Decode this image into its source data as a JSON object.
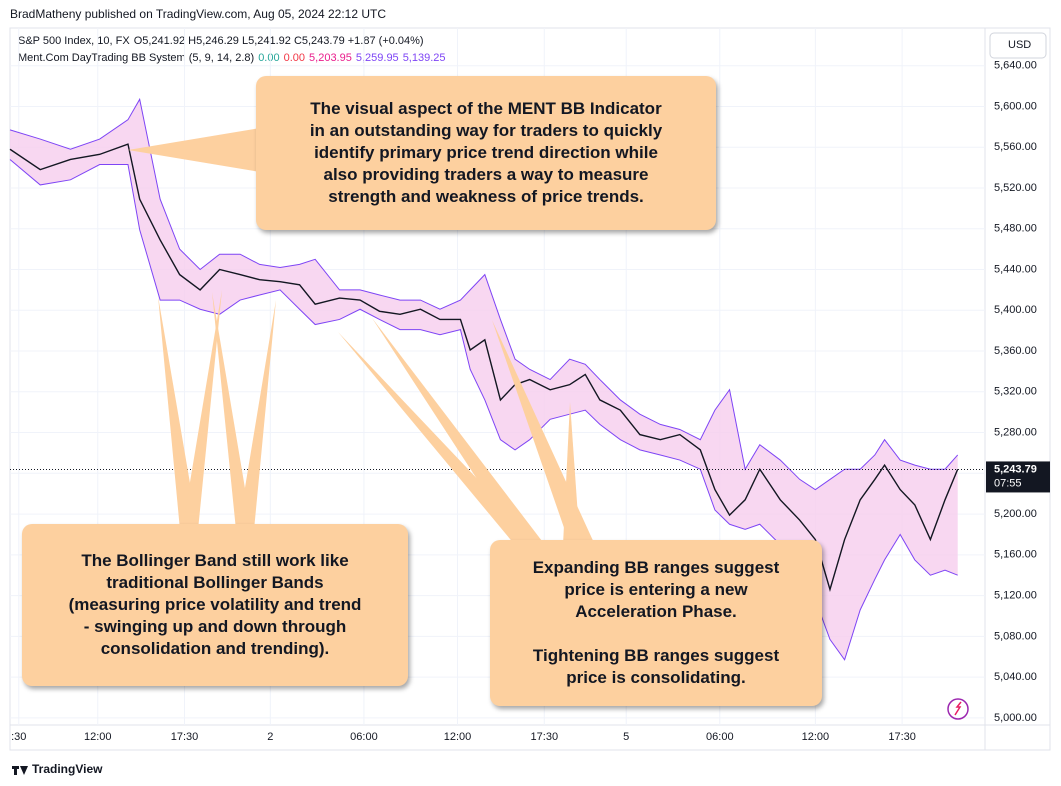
{
  "header": {
    "published": "BradMatheny published on TradingView.com, Aug 05, 2024 22:12 UTC",
    "symbol": "S&P 500 Index, 10, FX",
    "ohlc": "O5,241.92 H5,246.29 L5,241.92 C5,243.79 +1.87 (+0.04%)",
    "indicator": "Ment.Com DayTrading BB System (5, 9, 14, 2.8)",
    "indicator_values": [
      {
        "label": "0.00",
        "color": "#26a69a"
      },
      {
        "label": "0.00",
        "color": "#f23645"
      },
      {
        "label": "5,203.95",
        "color": "#e91e8c"
      },
      {
        "label": "5,259.95",
        "color": "#7e45f5"
      },
      {
        "label": "5,139.25",
        "color": "#7e45f5"
      }
    ],
    "currency": "USD",
    "countdown": "07:55",
    "footer": "TradingView"
  },
  "chart_data": {
    "type": "line",
    "x": [
      0,
      3.1,
      6.2,
      9.2,
      12.1,
      13.3,
      15.4,
      17.4,
      19.5,
      21.5,
      23.6,
      25.6,
      27.7,
      29.7,
      31.3,
      33.8,
      35.9,
      37.9,
      40,
      42.1,
      44.1,
      46.2,
      47.2,
      48.7,
      50.3,
      51.8,
      53.3,
      55.4,
      57.4,
      59,
      60.5,
      62.6,
      64.6,
      66.7,
      68.7,
      70.8,
      72.3,
      73.8,
      75.4,
      76.9,
      79,
      81,
      82.6,
      84.1,
      85.6,
      87.2,
      88.7,
      89.7,
      91.3,
      92.8,
      94.4,
      95.9,
      97.2
    ],
    "series": [
      {
        "color": "#131722",
        "values": [
          5558,
          5538,
          5548,
          5553,
          5563,
          5509,
          5469,
          5435,
          5420,
          5440,
          5435,
          5430,
          5428,
          5425,
          5406,
          5412,
          5410,
          5399,
          5396,
          5401,
          5391,
          5391,
          5361,
          5371,
          5312,
          5327,
          5332,
          5322,
          5327,
          5337,
          5312,
          5302,
          5278,
          5273,
          5278,
          5263,
          5224,
          5199,
          5214,
          5244,
          5214,
          5194,
          5175,
          5126,
          5175,
          5214,
          5234,
          5248,
          5224,
          5209,
          5175,
          5214,
          5244
        ]
      },
      {
        "color": "#7e45f5",
        "values": [
          5577,
          5568,
          5558,
          5568,
          5587,
          5607,
          5509,
          5460,
          5440,
          5455,
          5455,
          5445,
          5442,
          5445,
          5450,
          5420,
          5420,
          5415,
          5410,
          5410,
          5401,
          5410,
          5420,
          5435,
          5391,
          5352,
          5342,
          5332,
          5352,
          5347,
          5332,
          5312,
          5298,
          5288,
          5283,
          5273,
          5302,
          5322,
          5244,
          5268,
          5253,
          5234,
          5224,
          5234,
          5244,
          5244,
          5258,
          5273,
          5253,
          5248,
          5244,
          5244,
          5258
        ]
      },
      {
        "color": "#7e45f5",
        "values": [
          5548,
          5523,
          5528,
          5543,
          5543,
          5479,
          5410,
          5410,
          5401,
          5396,
          5410,
          5415,
          5420,
          5401,
          5386,
          5391,
          5401,
          5391,
          5381,
          5381,
          5376,
          5381,
          5342,
          5312,
          5273,
          5263,
          5273,
          5293,
          5298,
          5302,
          5288,
          5273,
          5263,
          5258,
          5253,
          5244,
          5204,
          5190,
          5185,
          5190,
          5170,
          5160,
          5116,
          5077,
          5057,
          5106,
          5136,
          5155,
          5180,
          5155,
          5140,
          5145,
          5140
        ]
      }
    ],
    "band_fill": "#f6cdee",
    "xlim": [
      0,
      100
    ],
    "xticks": [
      {
        "value": 0.9,
        "label": ":30"
      },
      {
        "value": 9,
        "label": "12:00"
      },
      {
        "value": 17.9,
        "label": "17:30"
      },
      {
        "value": 26.7,
        "label": "2"
      },
      {
        "value": 36.3,
        "label": "06:00"
      },
      {
        "value": 45.9,
        "label": "12:00"
      },
      {
        "value": 54.8,
        "label": "17:30"
      },
      {
        "value": 63.2,
        "label": "5"
      },
      {
        "value": 72.8,
        "label": "06:00"
      },
      {
        "value": 82.6,
        "label": "12:00"
      },
      {
        "value": 91.5,
        "label": "17:30"
      }
    ],
    "ylim": [
      4993,
      5677
    ],
    "yticks": [
      {
        "value": 5000,
        "label": "5,000.00"
      },
      {
        "value": 5040,
        "label": "5,040.00"
      },
      {
        "value": 5080,
        "label": "5,080.00"
      },
      {
        "value": 5120,
        "label": "5,120.00"
      },
      {
        "value": 5160,
        "label": "5,160.00"
      },
      {
        "value": 5200,
        "label": "5,200.00"
      },
      {
        "value": 5240,
        "label": "5,240.00"
      },
      {
        "value": 5280,
        "label": "5,280.00"
      },
      {
        "value": 5320,
        "label": "5,320.00"
      },
      {
        "value": 5360,
        "label": "5,360.00"
      },
      {
        "value": 5400,
        "label": "5,400.00"
      },
      {
        "value": 5440,
        "label": "5,440.00"
      },
      {
        "value": 5480,
        "label": "5,480.00"
      },
      {
        "value": 5520,
        "label": "5,520.00"
      },
      {
        "value": 5560,
        "label": "5,560.00"
      },
      {
        "value": 5600,
        "label": "5,600.00"
      },
      {
        "value": 5640,
        "label": "5,640.00"
      }
    ],
    "grid": true,
    "last_price": {
      "value": 5243.79,
      "label": "5,243.79"
    },
    "annotations": [
      {
        "lines": [
          "The visual aspect of the MENT BB Indicator",
          "in an outstanding way for traders to quickly",
          "identify primary price trend direction while",
          "also providing traders a way to measure",
          "strength and weakness of price trends."
        ]
      },
      {
        "lines": [
          "The Bollinger Band still work like",
          "traditional Bollinger Bands",
          "(measuring price volatility and trend",
          "- swinging up and down through",
          "consolidation and trending)."
        ]
      },
      {
        "lines": [
          "Expanding BB ranges suggest",
          "price is entering a new",
          "Acceleration Phase.",
          "",
          "Tightening BB ranges suggest",
          "price is consolidating."
        ]
      }
    ]
  }
}
